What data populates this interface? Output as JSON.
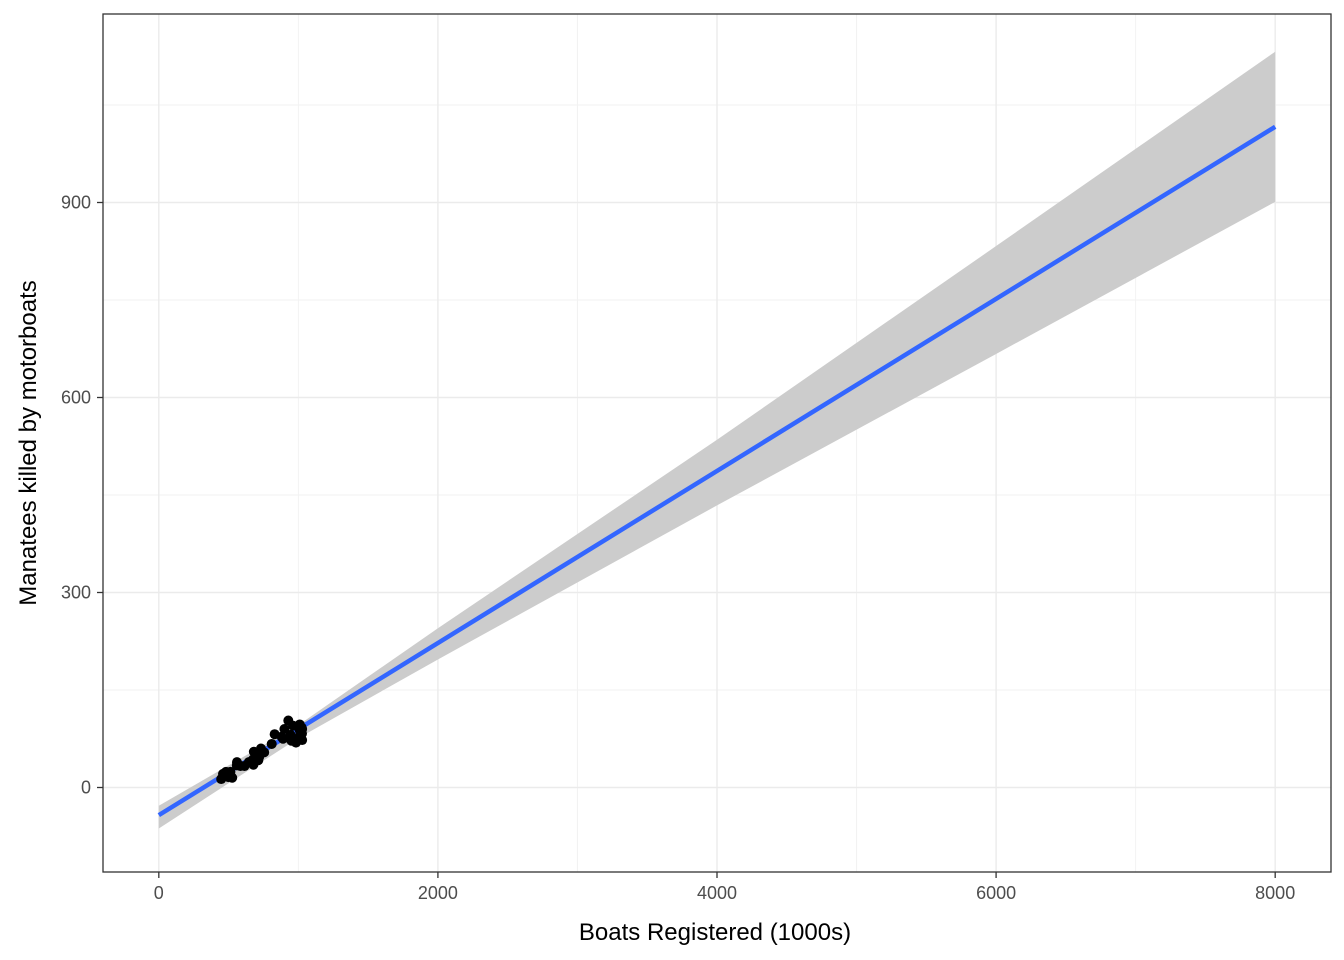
{
  "chart_data": {
    "type": "scatter",
    "title": "",
    "xlabel": "Boats Registered (1000s)",
    "ylabel": "Manatees killed by motorboats",
    "xlim": [
      -400,
      8400
    ],
    "ylim": [
      -130,
      1190
    ],
    "x_ticks": [
      0,
      2000,
      4000,
      6000,
      8000
    ],
    "x_tick_labels": [
      "0",
      "2000",
      "4000",
      "6000",
      "8000"
    ],
    "y_ticks": [
      0,
      300,
      600,
      900
    ],
    "y_tick_labels": [
      "0",
      "300",
      "600",
      "900"
    ],
    "grid": true,
    "legend": "none",
    "points": [
      {
        "x": 447,
        "y": 13
      },
      {
        "x": 460,
        "y": 21
      },
      {
        "x": 481,
        "y": 24
      },
      {
        "x": 498,
        "y": 16
      },
      {
        "x": 513,
        "y": 24
      },
      {
        "x": 512,
        "y": 20
      },
      {
        "x": 526,
        "y": 15
      },
      {
        "x": 559,
        "y": 34
      },
      {
        "x": 585,
        "y": 33
      },
      {
        "x": 614,
        "y": 33
      },
      {
        "x": 645,
        "y": 39
      },
      {
        "x": 675,
        "y": 43
      },
      {
        "x": 711,
        "y": 50
      },
      {
        "x": 719,
        "y": 47
      },
      {
        "x": 681,
        "y": 55
      },
      {
        "x": 679,
        "y": 38
      },
      {
        "x": 678,
        "y": 35
      },
      {
        "x": 696,
        "y": 49
      },
      {
        "x": 713,
        "y": 42
      },
      {
        "x": 732,
        "y": 60
      },
      {
        "x": 755,
        "y": 54
      },
      {
        "x": 809,
        "y": 67
      },
      {
        "x": 830,
        "y": 82
      },
      {
        "x": 880,
        "y": 78
      },
      {
        "x": 944,
        "y": 81
      },
      {
        "x": 962,
        "y": 95
      },
      {
        "x": 978,
        "y": 73
      },
      {
        "x": 983,
        "y": 69
      },
      {
        "x": 1010,
        "y": 79
      },
      {
        "x": 1024,
        "y": 92
      },
      {
        "x": 1027,
        "y": 73
      },
      {
        "x": 1027,
        "y": 90
      },
      {
        "x": 1010,
        "y": 97
      },
      {
        "x": 1026,
        "y": 83
      },
      {
        "x": 928,
        "y": 103
      },
      {
        "x": 900,
        "y": 90
      },
      {
        "x": 950,
        "y": 72
      },
      {
        "x": 1010,
        "y": 88
      },
      {
        "x": 890,
        "y": 75
      },
      {
        "x": 560,
        "y": 39
      }
    ],
    "fit_line": {
      "x": [
        0,
        8000
      ],
      "y": [
        -42.5,
        1016.5
      ],
      "color": "#3366ff"
    },
    "confidence_band": {
      "color": "#cccccc",
      "x": [
        0,
        1000,
        2000,
        4000,
        6000,
        8000
      ],
      "upper": [
        -28,
        96,
        245,
        535,
        833,
        1132
      ],
      "lower": [
        -63,
        76,
        197,
        434,
        667,
        901
      ]
    },
    "point_color": "#000000"
  }
}
